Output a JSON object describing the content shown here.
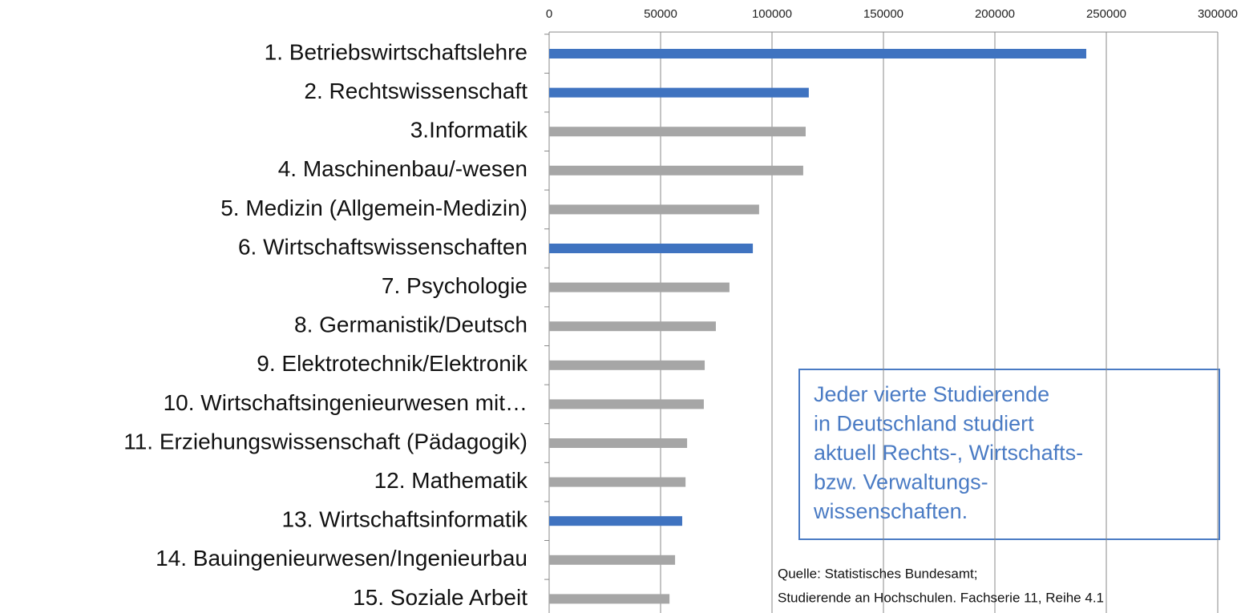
{
  "chart_data": {
    "type": "bar",
    "orientation": "horizontal",
    "categories": [
      "1. Betriebswirtschaftslehre",
      "2. Rechtswissenschaft",
      "3.Informatik",
      "4. Maschinenbau/-wesen",
      "5. Medizin (Allgemein-Medizin)",
      "6. Wirtschaftswissenschaften",
      "7. Psychologie",
      "8. Germanistik/Deutsch",
      "9. Elektrotechnik/Elektronik",
      "10. Wirtschaftsingenieurwesen mit…",
      "11. Erziehungswissenschaft (Pädagogik)",
      "12. Mathematik",
      "13. Wirtschaftsinformatik",
      "14. Bauingenieurwesen/Ingenieurbau",
      "15. Soziale Arbeit"
    ],
    "values": [
      241000,
      116500,
      115100,
      114000,
      94200,
      91400,
      80900,
      74800,
      69800,
      69400,
      61900,
      61200,
      59700,
      56500,
      54000
    ],
    "colors": [
      "#3f73c0",
      "#3f73c0",
      "#a6a6a6",
      "#a6a6a6",
      "#a6a6a6",
      "#3f73c0",
      "#a6a6a6",
      "#a6a6a6",
      "#a6a6a6",
      "#a6a6a6",
      "#a6a6a6",
      "#a6a6a6",
      "#3f73c0",
      "#a6a6a6",
      "#a6a6a6"
    ],
    "xlim": [
      0,
      300000
    ],
    "xticks": [
      0,
      50000,
      100000,
      150000,
      200000,
      250000,
      300000
    ],
    "grid": true,
    "annotation": [
      "Jeder vierte Studierende",
      "in Deutschland studiert",
      "aktuell Rechts-, Wirtschafts-",
      "bzw. Verwaltungs-",
      "wissenschaften."
    ],
    "source": [
      "Quelle: Statistisches Bundesamt;",
      "Studierende an Hochschulen. Fachserie 11, Reihe 4.1"
    ]
  }
}
